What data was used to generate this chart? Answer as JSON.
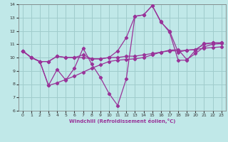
{
  "xlabel": "Windchill (Refroidissement éolien,°C)",
  "bg_color": "#c0e8e8",
  "grid_color": "#a0cccc",
  "line_color": "#993399",
  "xlim": [
    -0.5,
    23.5
  ],
  "ylim": [
    6,
    14
  ],
  "xticks": [
    0,
    1,
    2,
    3,
    4,
    5,
    6,
    7,
    8,
    9,
    10,
    11,
    12,
    13,
    14,
    15,
    16,
    17,
    18,
    19,
    20,
    21,
    22,
    23
  ],
  "yticks": [
    6,
    7,
    8,
    9,
    10,
    11,
    12,
    13,
    14
  ],
  "series1_x": [
    0,
    1,
    2,
    3,
    4,
    5,
    6,
    7,
    8,
    9,
    10,
    11,
    12,
    13,
    14,
    15,
    16,
    17,
    18,
    19,
    20,
    21,
    22,
    23
  ],
  "series1_y": [
    10.5,
    10.0,
    9.7,
    9.7,
    10.1,
    10.0,
    10.0,
    10.0,
    9.9,
    9.9,
    10.0,
    10.0,
    10.1,
    10.1,
    10.2,
    10.3,
    10.4,
    10.5,
    10.5,
    10.55,
    10.6,
    10.7,
    10.75,
    10.8
  ],
  "series2_x": [
    0,
    1,
    2,
    3,
    4,
    5,
    6,
    7,
    8,
    9,
    10,
    11,
    12,
    13,
    14,
    15,
    16,
    17,
    18,
    19,
    20,
    21,
    22,
    23
  ],
  "series2_y": [
    10.5,
    10.0,
    9.7,
    7.9,
    9.1,
    8.3,
    9.2,
    10.7,
    9.5,
    8.5,
    7.3,
    6.4,
    8.4,
    13.1,
    13.2,
    13.9,
    12.7,
    11.9,
    9.8,
    9.8,
    10.55,
    11.05,
    11.1,
    11.1
  ],
  "series3_x": [
    0,
    1,
    2,
    3,
    4,
    5,
    6,
    7,
    8,
    9,
    10,
    11,
    12,
    13,
    14,
    15,
    16,
    17,
    18,
    19,
    20,
    21,
    22,
    23
  ],
  "series3_y": [
    10.5,
    10.0,
    9.7,
    9.7,
    10.1,
    10.0,
    10.0,
    10.2,
    9.9,
    9.9,
    10.0,
    10.5,
    11.5,
    13.1,
    13.2,
    13.9,
    12.65,
    12.0,
    10.4,
    10.55,
    10.6,
    11.0,
    11.1,
    11.1
  ],
  "series4_x": [
    0,
    1,
    2,
    3,
    4,
    5,
    6,
    7,
    8,
    9,
    10,
    11,
    12,
    13,
    14,
    15,
    16,
    17,
    18,
    19,
    20,
    21,
    22,
    23
  ],
  "series4_y": [
    10.5,
    10.0,
    9.7,
    7.9,
    8.1,
    8.35,
    8.6,
    8.9,
    9.2,
    9.45,
    9.7,
    9.8,
    9.85,
    9.9,
    10.0,
    10.2,
    10.4,
    10.55,
    10.6,
    9.85,
    10.3,
    10.8,
    11.0,
    11.05
  ]
}
